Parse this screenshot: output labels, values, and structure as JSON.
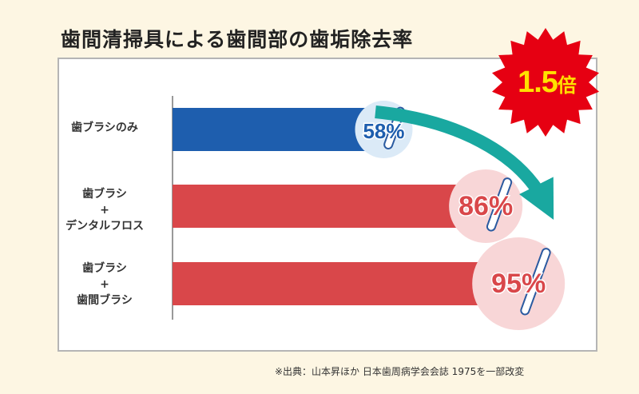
{
  "title": "歯間清掃具による歯間部の歯垢除去率",
  "badge": {
    "value": "1.5",
    "suffix": "倍"
  },
  "source": "※出典：山本昇ほか 日本歯周病学会会誌 1975を一部改変",
  "colors": {
    "blue": "#1e5eae",
    "red": "#d9474a",
    "arrow": "#19a8a0",
    "badge": "#e60012",
    "badge_text": "#ffe100"
  },
  "chart_data": {
    "type": "bar",
    "orientation": "horizontal",
    "categories": [
      [
        "歯ブラシのみ"
      ],
      [
        "歯ブラシ",
        "+",
        "デンタルフロス"
      ],
      [
        "歯ブラシ",
        "+",
        "歯間ブラシ"
      ]
    ],
    "values": [
      58,
      86,
      95
    ],
    "value_labels": [
      "58%",
      "86%",
      "95%"
    ],
    "xlim": [
      0,
      100
    ],
    "grid": false
  }
}
